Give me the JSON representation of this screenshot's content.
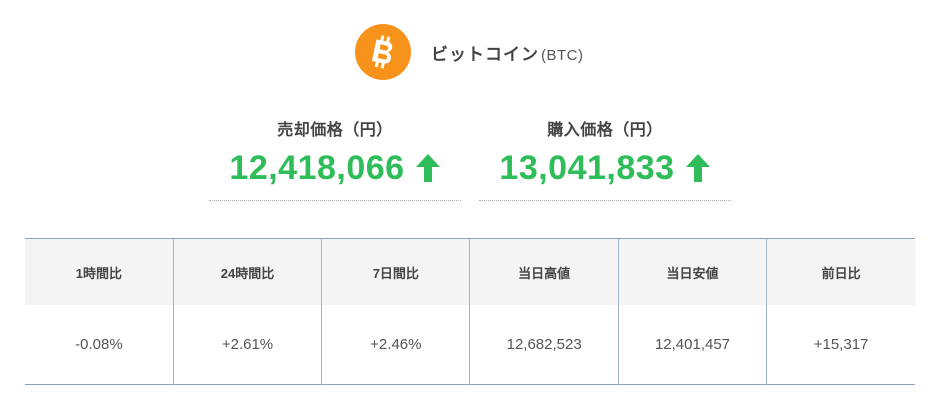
{
  "coin": {
    "name": "ビットコイン",
    "symbol": "(BTC)",
    "logo_icon": "bitcoin-logo-icon",
    "logo_color": "#f7931a"
  },
  "prices": {
    "sell": {
      "label": "売却価格（円）",
      "value": "12,418,066",
      "trend_icon": "up-arrow-icon"
    },
    "buy": {
      "label": "購入価格（円）",
      "value": "13,041,833",
      "trend_icon": "up-arrow-icon"
    },
    "up_color": "#2ebd59"
  },
  "stats": {
    "headers": [
      "1時間比",
      "24時間比",
      "7日間比",
      "当日高値",
      "当日安値",
      "前日比"
    ],
    "values": [
      "-0.08%",
      "+2.61%",
      "+2.46%",
      "12,682,523",
      "12,401,457",
      "+15,317"
    ]
  }
}
